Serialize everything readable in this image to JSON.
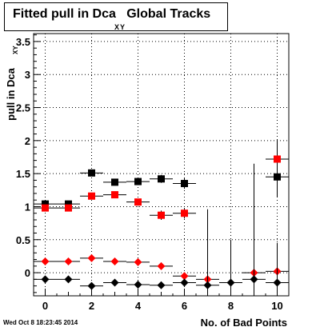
{
  "chart_data": {
    "type": "scatter",
    "title": "Fitted pull in Dca",
    "title_subscript": "XY",
    "title_suffix": "Global Tracks",
    "xlabel": "No. of Bad Points",
    "ylabel": "pull in Dca",
    "ylabel_subscript": "XY",
    "xlim": [
      -0.5,
      10.5
    ],
    "ylim": [
      -0.35,
      3.62
    ],
    "xticks": [
      0,
      2,
      4,
      6,
      8,
      10
    ],
    "yticks": [
      0,
      0.5,
      1,
      1.5,
      2,
      2.5,
      3,
      3.5
    ],
    "ytick_labels": [
      "0",
      "0.5",
      "1",
      "1.5",
      "2",
      "2.5",
      "3",
      "3.5"
    ],
    "grid": true,
    "series": [
      {
        "color": "#000000",
        "marker": "square",
        "x": [
          0,
          1,
          2,
          3,
          4,
          5,
          6,
          10
        ],
        "y": [
          1.04,
          1.04,
          1.51,
          1.37,
          1.38,
          1.42,
          1.35,
          1.45
        ],
        "yerr": [
          0.04,
          0.04,
          0.03,
          0.04,
          0.04,
          0.06,
          0.08,
          0.3
        ]
      },
      {
        "color": "#ff0000",
        "marker": "square",
        "x": [
          0,
          1,
          2,
          3,
          4,
          5,
          6,
          10
        ],
        "y": [
          0.98,
          0.98,
          1.16,
          1.18,
          1.07,
          0.87,
          0.9,
          1.72
        ],
        "yerr": [
          0.03,
          0.03,
          0.04,
          0.04,
          0.05,
          0.07,
          0.08,
          0.3
        ]
      },
      {
        "color": "#ff0000",
        "marker": "diamond",
        "x": [
          0,
          1,
          2,
          3,
          4,
          5,
          6,
          7,
          9,
          10
        ],
        "y": [
          0.17,
          0.17,
          0.22,
          0.17,
          0.16,
          0.1,
          -0.05,
          -0.1,
          0.0,
          0.02
        ],
        "yerr": [
          0.02,
          0.02,
          0.02,
          0.03,
          0.03,
          0.04,
          0.05,
          0.12,
          0.05,
          0.08
        ]
      },
      {
        "color": "#000000",
        "marker": "diamond",
        "x": [
          0,
          1,
          2,
          3,
          4,
          5,
          6,
          7,
          8,
          9,
          10
        ],
        "y": [
          -0.1,
          -0.1,
          -0.2,
          -0.15,
          -0.18,
          -0.19,
          -0.15,
          -0.19,
          -0.15,
          -0.1,
          -0.15
        ],
        "yerr": [
          0.02,
          0.02,
          0.02,
          0.03,
          0.03,
          0.04,
          0.05,
          1.15,
          0.65,
          1.75,
          0.6
        ]
      }
    ]
  },
  "footer": {
    "timestamp": "Wed Oct  8 18:23:45 2014"
  }
}
